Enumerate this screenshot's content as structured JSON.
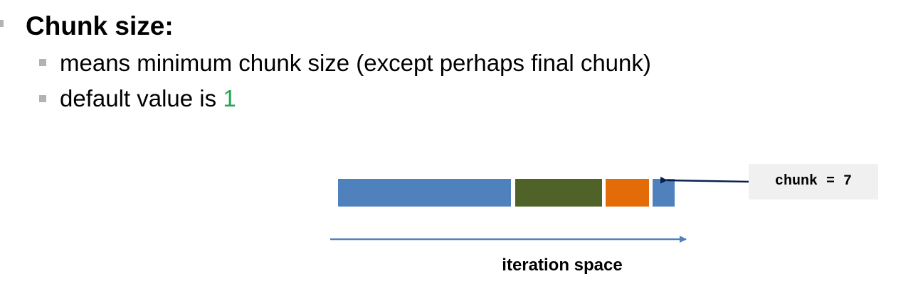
{
  "heading": {
    "text": "Chunk size:"
  },
  "bullets": [
    {
      "text": "means minimum chunk size (except perhaps final chunk)"
    },
    {
      "prefix": "default value is ",
      "value": "1"
    }
  ],
  "diagram": {
    "segments": [
      {
        "name": "chunk-1",
        "color": "#4f81bd"
      },
      {
        "name": "chunk-2",
        "color": "#4f6228"
      },
      {
        "name": "chunk-3",
        "color": "#e36c09"
      },
      {
        "name": "chunk-4",
        "color": "#4f81bd"
      }
    ],
    "callout_text": "chunk = 7",
    "axis_label": "iteration space",
    "pointer_color": "#0b2050",
    "axis_color": "#4f81bd"
  }
}
